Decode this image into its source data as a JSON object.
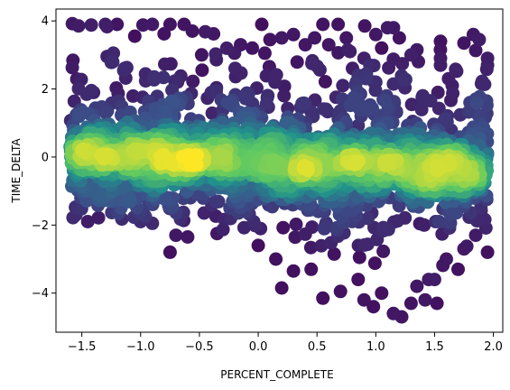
{
  "chart_data": {
    "type": "scatter",
    "title": "",
    "xlabel": "PERCENT_COMPLETE",
    "ylabel": "TIME_DELTA",
    "xlim": [
      -1.72,
      2.08
    ],
    "ylim": [
      -5.15,
      4.35
    ],
    "xticks": [
      -1.5,
      -1.0,
      -0.5,
      0.0,
      0.5,
      1.0,
      1.5,
      2.0
    ],
    "xtick_labels": [
      "−1.5",
      "−1.0",
      "−0.5",
      "0.0",
      "0.5",
      "1.0",
      "1.5",
      "2.0"
    ],
    "yticks": [
      -4,
      -2,
      0,
      2,
      4
    ],
    "ytick_labels": [
      "−4",
      "−2",
      "0",
      "2",
      "4"
    ],
    "grid": false,
    "legend": "none",
    "colormap": "viridis",
    "color_encoding": "point density (yellow = densest)",
    "colors": {
      "low_density": "#440154",
      "mid_low": "#3b528b",
      "mid": "#21918c",
      "mid_high": "#5ec962",
      "high_density": "#fde725"
    },
    "points": [
      {
        "x": -1.58,
        "y": 3.92
      },
      {
        "x": -1.42,
        "y": 3.88
      },
      {
        "x": -1.3,
        "y": 3.9
      },
      {
        "x": -1.2,
        "y": 3.9
      },
      {
        "x": -0.98,
        "y": 3.88
      },
      {
        "x": -0.9,
        "y": 3.9
      },
      {
        "x": -0.75,
        "y": 3.9
      },
      {
        "x": -0.63,
        "y": 3.9
      },
      {
        "x": -0.56,
        "y": 3.7
      },
      {
        "x": -0.45,
        "y": 3.68
      },
      {
        "x": -0.38,
        "y": 3.62
      },
      {
        "x": -0.8,
        "y": 3.62
      },
      {
        "x": -1.05,
        "y": 3.55
      },
      {
        "x": 0.03,
        "y": 3.9
      },
      {
        "x": -0.15,
        "y": 3.3
      },
      {
        "x": -0.05,
        "y": 3.2
      },
      {
        "x": 0.1,
        "y": 3.45
      },
      {
        "x": 0.2,
        "y": 3.5
      },
      {
        "x": 0.3,
        "y": 3.6
      },
      {
        "x": 0.4,
        "y": 3.3
      },
      {
        "x": 0.48,
        "y": 3.5
      },
      {
        "x": 0.55,
        "y": 3.9
      },
      {
        "x": 0.6,
        "y": 3.3
      },
      {
        "x": 0.68,
        "y": 3.9
      },
      {
        "x": 0.75,
        "y": 3.5
      },
      {
        "x": 0.78,
        "y": 3.1
      },
      {
        "x": 0.9,
        "y": 2.9
      },
      {
        "x": 0.95,
        "y": 2.7
      },
      {
        "x": 1.0,
        "y": 3.6
      },
      {
        "x": 1.05,
        "y": 3.2
      },
      {
        "x": 1.1,
        "y": 3.8
      },
      {
        "x": 1.15,
        "y": 3.8
      },
      {
        "x": 1.2,
        "y": 3.5
      },
      {
        "x": 1.3,
        "y": 3.0
      },
      {
        "x": 1.35,
        "y": 3.15
      },
      {
        "x": 1.55,
        "y": 3.4
      },
      {
        "x": 1.55,
        "y": 2.9
      },
      {
        "x": 1.55,
        "y": 2.7
      },
      {
        "x": 1.75,
        "y": 3.35
      },
      {
        "x": 1.83,
        "y": 3.6
      },
      {
        "x": 1.88,
        "y": 3.45
      },
      {
        "x": 1.95,
        "y": 2.9
      },
      {
        "x": 1.95,
        "y": 2.7
      },
      {
        "x": 1.65,
        "y": 2.1
      },
      {
        "x": 1.85,
        "y": 1.7
      },
      {
        "x": 1.4,
        "y": 1.8
      },
      {
        "x": 1.0,
        "y": 2.2
      },
      {
        "x": 0.85,
        "y": 2.4
      },
      {
        "x": 1.15,
        "y": -4.6
      },
      {
        "x": 1.22,
        "y": -4.7
      },
      {
        "x": 1.3,
        "y": -4.3
      },
      {
        "x": 1.42,
        "y": -4.2
      },
      {
        "x": 1.52,
        "y": -4.3
      },
      {
        "x": 0.55,
        "y": -4.15
      },
      {
        "x": 0.9,
        "y": -4.2
      },
      {
        "x": 0.98,
        "y": -4.4
      },
      {
        "x": 1.05,
        "y": -4.0
      },
      {
        "x": 0.7,
        "y": -3.95
      },
      {
        "x": 0.2,
        "y": -3.85
      },
      {
        "x": 0.3,
        "y": -3.35
      },
      {
        "x": 0.15,
        "y": -3.0
      },
      {
        "x": 0.0,
        "y": -2.6
      },
      {
        "x": -0.35,
        "y": -2.25
      },
      {
        "x": -0.6,
        "y": -2.35
      },
      {
        "x": -0.7,
        "y": -2.3
      },
      {
        "x": -0.75,
        "y": -2.8
      },
      {
        "x": -0.9,
        "y": -1.95
      },
      {
        "x": -1.0,
        "y": -1.9
      },
      {
        "x": -1.45,
        "y": -1.9
      },
      {
        "x": -1.55,
        "y": -1.7
      },
      {
        "x": 1.5,
        "y": -3.6
      },
      {
        "x": 1.7,
        "y": -3.3
      },
      {
        "x": 1.95,
        "y": -2.8
      },
      {
        "x": 1.85,
        "y": -2.3
      },
      {
        "x": 1.75,
        "y": -2.7
      },
      {
        "x": 1.6,
        "y": -3.0
      },
      {
        "x": 1.35,
        "y": -3.8
      },
      {
        "x": 1.45,
        "y": -3.6
      },
      {
        "x": 0.85,
        "y": -3.6
      },
      {
        "x": 0.45,
        "y": -3.3
      }
    ]
  }
}
